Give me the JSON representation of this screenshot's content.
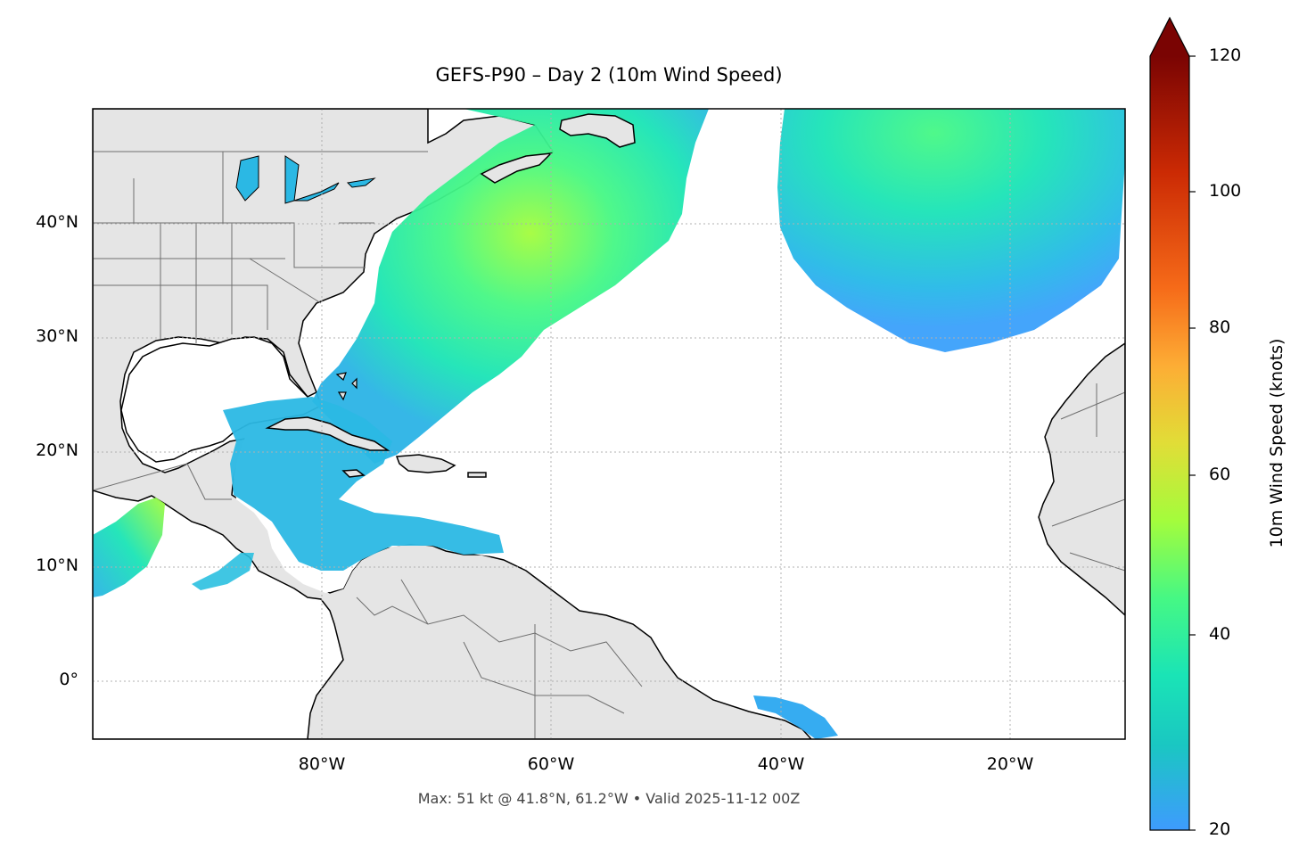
{
  "map": {
    "title": "GEFS-P90 – Day 2 (10m Wind Speed)",
    "footnote": "Max: 51 kt @ 41.8°N, 61.2°W • Valid 2025-11-12 00Z",
    "lat_ticks": [
      "40°N",
      "30°N",
      "20°N",
      "10°N",
      "0°"
    ],
    "lon_ticks": [
      "80°W",
      "60°W",
      "40°W",
      "20°W"
    ],
    "extent": {
      "lon_min": -100,
      "lon_max": -10,
      "lat_min": -5,
      "lat_max": 50
    },
    "colors": {
      "land": "#e5e5e5",
      "coast": "#000000",
      "borders": "#6e6e6e",
      "grid": "#b0b0b0"
    }
  },
  "colorbar": {
    "label": "10m Wind Speed (knots)",
    "ticks": [
      "120",
      "100",
      "80",
      "60",
      "40",
      "20"
    ],
    "min": 20,
    "max": 120,
    "extend": "max",
    "colormap": "turbo",
    "stops": [
      "#3e9bfe",
      "#1ac7c2",
      "#1ae4b6",
      "#46f884",
      "#a4fc3c",
      "#e1dd37",
      "#fdad35",
      "#f66b19",
      "#cb2a04",
      "#7a0403"
    ]
  },
  "chart_data": {
    "type": "heatmap",
    "title": "GEFS-P90 – Day 2 (10m Wind Speed)",
    "value_label": "10m Wind Speed (knots)",
    "value_range": [
      20,
      120
    ],
    "xlim": [
      -100,
      -10
    ],
    "ylim": [
      -5,
      50
    ],
    "max": {
      "value": 51,
      "lat": 41.8,
      "lon": -61.2,
      "unit": "kt"
    },
    "valid": "2025-11-12 00Z"
  }
}
